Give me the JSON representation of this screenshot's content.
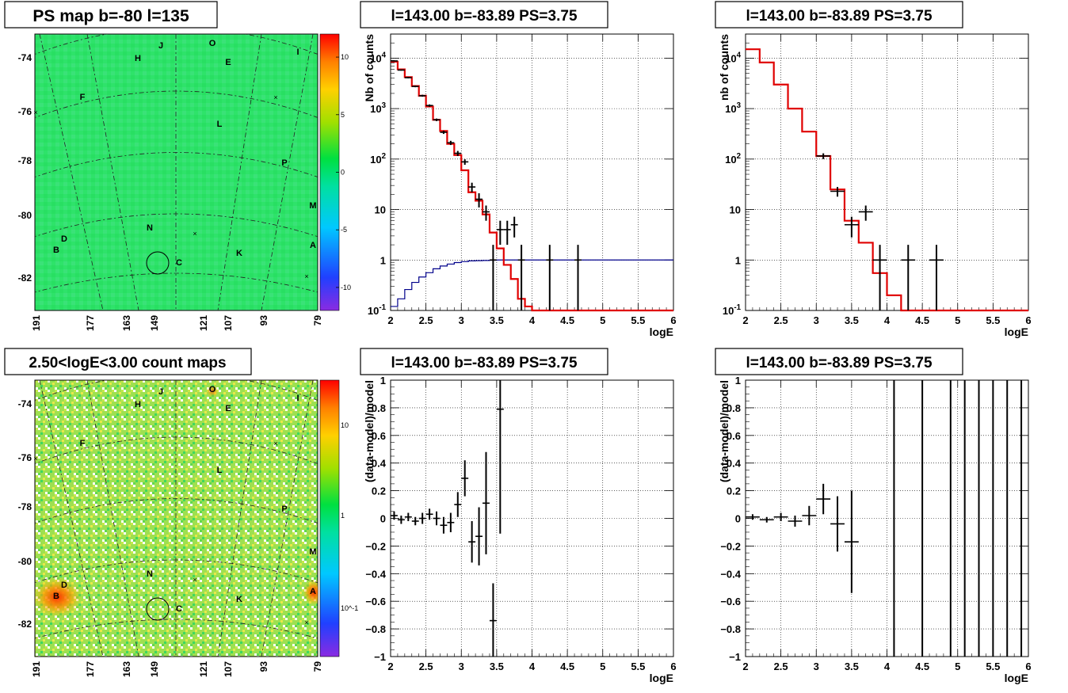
{
  "panels": {
    "map_top": {
      "title": "PS map b=-80 l=135",
      "colorbar_ticks": [
        10,
        5,
        0,
        -5,
        -10
      ],
      "colorbar_range": [
        -12,
        12
      ]
    },
    "map_bottom": {
      "title": "2.50<logE<3.00 count maps",
      "colorbar_labels": [
        "10",
        "1",
        "10^-1"
      ]
    },
    "map_axes": {
      "y_ticks": [
        "-74",
        "-76",
        "-78",
        "-80",
        "-82"
      ],
      "x_ticks": [
        "191",
        "177",
        "163",
        "149",
        "121",
        "107",
        "93",
        "79"
      ]
    },
    "map_sources": [
      "J",
      "O",
      "H",
      "E",
      "I",
      "F",
      "L",
      "P",
      "M",
      "D",
      "B",
      "N",
      "C",
      "K",
      "A"
    ],
    "spec_titles": [
      "l=143.00 b=-83.89 PS=3.75",
      "l=143.00 b=-83.89 PS=3.75",
      "l=143.00 b=-83.89 PS=3.75",
      "l=143.00 b=-83.89 PS=3.75"
    ]
  },
  "chart_data": [
    {
      "type": "line",
      "title": "l=143.00 b=-83.89 PS=3.75",
      "xlabel": "logE",
      "ylabel": "Nb of counts",
      "yscale": "log",
      "xlim": [
        2,
        6
      ],
      "ylim": [
        0.1,
        30000
      ],
      "x_ticks": [
        "2",
        "2.5",
        "3",
        "3.5",
        "4",
        "4.5",
        "5",
        "5.5",
        "6"
      ],
      "y_ticks": [
        {
          "v": 0.1,
          "t": "10^-1"
        },
        {
          "v": 1,
          "t": "1"
        },
        {
          "v": 10,
          "t": "10"
        },
        {
          "v": 100,
          "t": "10^2"
        },
        {
          "v": 1000,
          "t": "10^3"
        },
        {
          "v": 10000,
          "t": "10^4"
        }
      ],
      "grid": true,
      "step_model": {
        "color": "#e00000",
        "edges": [
          2.0,
          2.1,
          2.2,
          2.3,
          2.4,
          2.5,
          2.6,
          2.7,
          2.8,
          2.9,
          3.0,
          3.1,
          3.2,
          3.3,
          3.4,
          3.5,
          3.6,
          3.7,
          3.8,
          3.9,
          4.0,
          6.0
        ],
        "values": [
          8500,
          6000,
          4200,
          2800,
          1800,
          1100,
          600,
          360,
          200,
          120,
          60,
          22,
          15,
          8,
          3.5,
          1.7,
          0.8,
          0.42,
          0.17,
          0.12,
          0.1
        ]
      },
      "step_aux": {
        "color": "#00008b",
        "edges": [
          2.0,
          2.1,
          2.2,
          2.3,
          2.4,
          2.5,
          2.6,
          2.7,
          2.8,
          2.9,
          3.0,
          3.1,
          3.2,
          3.3,
          3.4,
          3.5,
          6.0
        ],
        "values": [
          0.12,
          0.17,
          0.26,
          0.36,
          0.46,
          0.56,
          0.67,
          0.76,
          0.83,
          0.89,
          0.93,
          0.96,
          0.97,
          0.98,
          0.99,
          1.0
        ]
      },
      "points": [
        {
          "x": 2.05,
          "y": 8800,
          "xe": 0.05,
          "lo": 8600,
          "hi": 9000
        },
        {
          "x": 2.15,
          "y": 5800,
          "xe": 0.05,
          "lo": 5650,
          "hi": 5950
        },
        {
          "x": 2.25,
          "y": 4100,
          "xe": 0.05,
          "lo": 3970,
          "hi": 4230
        },
        {
          "x": 2.35,
          "y": 2750,
          "xe": 0.05,
          "lo": 2650,
          "hi": 2850
        },
        {
          "x": 2.45,
          "y": 1800,
          "xe": 0.05,
          "lo": 1720,
          "hi": 1880
        },
        {
          "x": 2.55,
          "y": 1150,
          "xe": 0.05,
          "lo": 1090,
          "hi": 1210
        },
        {
          "x": 2.65,
          "y": 600,
          "xe": 0.05,
          "lo": 565,
          "hi": 635
        },
        {
          "x": 2.75,
          "y": 340,
          "xe": 0.05,
          "lo": 315,
          "hi": 365
        },
        {
          "x": 2.85,
          "y": 210,
          "xe": 0.05,
          "lo": 190,
          "hi": 230
        },
        {
          "x": 2.95,
          "y": 130,
          "xe": 0.05,
          "lo": 115,
          "hi": 145
        },
        {
          "x": 3.05,
          "y": 88,
          "xe": 0.05,
          "lo": 77,
          "hi": 99
        },
        {
          "x": 3.15,
          "y": 28,
          "xe": 0.05,
          "lo": 22,
          "hi": 34
        },
        {
          "x": 3.25,
          "y": 16,
          "xe": 0.05,
          "lo": 11,
          "hi": 21
        },
        {
          "x": 3.35,
          "y": 9,
          "xe": 0.05,
          "lo": 6,
          "hi": 12
        },
        {
          "x": 3.45,
          "y": 1,
          "xe": 0.05,
          "lo": 0.1,
          "hi": 2
        },
        {
          "x": 3.55,
          "y": 4,
          "xe": 0.05,
          "lo": 2,
          "hi": 6
        },
        {
          "x": 3.65,
          "y": 4,
          "xe": 0.05,
          "lo": 2,
          "hi": 6
        },
        {
          "x": 3.75,
          "y": 5,
          "xe": 0.05,
          "lo": 2.8,
          "hi": 7.2
        },
        {
          "x": 3.85,
          "y": 1,
          "xe": 0.05,
          "lo": 0.1,
          "hi": 2
        },
        {
          "x": 4.25,
          "y": 1,
          "xe": 0.05,
          "lo": 0.1,
          "hi": 2
        },
        {
          "x": 4.65,
          "y": 1,
          "xe": 0.05,
          "lo": 0.1,
          "hi": 2
        }
      ]
    },
    {
      "type": "line",
      "title": "l=143.00 b=-83.89 PS=3.75",
      "xlabel": "logE",
      "ylabel": "nb of counts",
      "yscale": "log",
      "xlim": [
        2,
        6
      ],
      "ylim": [
        0.1,
        30000
      ],
      "x_ticks": [
        "2",
        "2.5",
        "3",
        "3.5",
        "4",
        "4.5",
        "5",
        "5.5",
        "6"
      ],
      "y_ticks": [
        {
          "v": 0.1,
          "t": "10^-1"
        },
        {
          "v": 1,
          "t": "1"
        },
        {
          "v": 10,
          "t": "10"
        },
        {
          "v": 100,
          "t": "10^2"
        },
        {
          "v": 1000,
          "t": "10^3"
        },
        {
          "v": 10000,
          "t": "10^4"
        }
      ],
      "grid": true,
      "step_model": {
        "color": "#e00000",
        "edges": [
          2.0,
          2.2,
          2.4,
          2.6,
          2.8,
          3.0,
          3.2,
          3.4,
          3.6,
          3.8,
          4.0,
          4.2,
          6.0
        ],
        "values": [
          15000,
          8200,
          3000,
          1000,
          350,
          115,
          25,
          6,
          2.2,
          0.55,
          0.2,
          0.1
        ]
      },
      "points": [
        {
          "x": 3.1,
          "y": 115,
          "xe": 0.1,
          "lo": 100,
          "hi": 130
        },
        {
          "x": 3.3,
          "y": 23,
          "xe": 0.1,
          "lo": 18,
          "hi": 28
        },
        {
          "x": 3.5,
          "y": 5,
          "xe": 0.1,
          "lo": 2.8,
          "hi": 7.2
        },
        {
          "x": 3.7,
          "y": 9,
          "xe": 0.1,
          "lo": 6,
          "hi": 12
        },
        {
          "x": 3.9,
          "y": 1,
          "xe": 0.1,
          "lo": 0.1,
          "hi": 2
        },
        {
          "x": 4.3,
          "y": 1,
          "xe": 0.1,
          "lo": 0.1,
          "hi": 2
        },
        {
          "x": 4.7,
          "y": 1,
          "xe": 0.1,
          "lo": 0.1,
          "hi": 2
        }
      ]
    },
    {
      "type": "scatter",
      "title": "l=143.00 b=-83.89 PS=3.75",
      "xlabel": "logE",
      "ylabel": "(data-model)/model",
      "xlim": [
        2,
        6
      ],
      "ylim": [
        -1,
        1
      ],
      "x_ticks": [
        "2",
        "2.5",
        "3",
        "3.5",
        "4",
        "4.5",
        "5",
        "5.5",
        "6"
      ],
      "y_ticks": [
        "1",
        "0.8",
        "0.6",
        "0.4",
        "0.2",
        "0",
        "-0.2",
        "-0.4",
        "-0.6",
        "-0.8",
        "-1"
      ],
      "grid": true,
      "points": [
        {
          "x": 2.05,
          "y": 0.02,
          "xe": 0.05,
          "lo": -0.01,
          "hi": 0.05
        },
        {
          "x": 2.15,
          "y": -0.01,
          "xe": 0.05,
          "lo": -0.04,
          "hi": 0.02
        },
        {
          "x": 2.25,
          "y": 0.01,
          "xe": 0.05,
          "lo": -0.02,
          "hi": 0.04
        },
        {
          "x": 2.35,
          "y": -0.02,
          "xe": 0.05,
          "lo": -0.05,
          "hi": 0.01
        },
        {
          "x": 2.45,
          "y": 0.0,
          "xe": 0.05,
          "lo": -0.04,
          "hi": 0.04
        },
        {
          "x": 2.55,
          "y": 0.03,
          "xe": 0.05,
          "lo": -0.01,
          "hi": 0.07
        },
        {
          "x": 2.65,
          "y": 0.0,
          "xe": 0.05,
          "lo": -0.05,
          "hi": 0.05
        },
        {
          "x": 2.75,
          "y": -0.05,
          "xe": 0.05,
          "lo": -0.11,
          "hi": 0.01
        },
        {
          "x": 2.85,
          "y": -0.03,
          "xe": 0.05,
          "lo": -0.1,
          "hi": 0.04
        },
        {
          "x": 2.95,
          "y": 0.1,
          "xe": 0.05,
          "lo": 0.01,
          "hi": 0.19
        },
        {
          "x": 3.05,
          "y": 0.29,
          "xe": 0.05,
          "lo": 0.16,
          "hi": 0.42
        },
        {
          "x": 3.15,
          "y": -0.17,
          "xe": 0.05,
          "lo": -0.32,
          "hi": -0.02
        },
        {
          "x": 3.25,
          "y": -0.13,
          "xe": 0.05,
          "lo": -0.34,
          "hi": 0.08
        },
        {
          "x": 3.35,
          "y": 0.11,
          "xe": 0.05,
          "lo": -0.26,
          "hi": 0.48
        },
        {
          "x": 3.45,
          "y": -0.74,
          "xe": 0.05,
          "lo": -1.0,
          "hi": -0.47
        },
        {
          "x": 3.55,
          "y": 0.79,
          "xe": 0.05,
          "lo": -0.11,
          "hi": 1.0
        }
      ]
    },
    {
      "type": "scatter",
      "title": "l=143.00 b=-83.89 PS=3.75",
      "xlabel": "logE",
      "ylabel": "(data-model)/model",
      "xlim": [
        2,
        6
      ],
      "ylim": [
        -1,
        1
      ],
      "x_ticks": [
        "2",
        "2.5",
        "3",
        "3.5",
        "4",
        "4.5",
        "5",
        "5.5",
        "6"
      ],
      "y_ticks": [
        "1",
        "0.8",
        "0.6",
        "0.4",
        "0.2",
        "0",
        "-0.2",
        "-0.4",
        "-0.6",
        "-0.8",
        "-1"
      ],
      "grid": true,
      "points": [
        {
          "x": 2.1,
          "y": 0.01,
          "xe": 0.1,
          "lo": -0.01,
          "hi": 0.03
        },
        {
          "x": 2.3,
          "y": -0.01,
          "xe": 0.1,
          "lo": -0.03,
          "hi": 0.01
        },
        {
          "x": 2.5,
          "y": 0.01,
          "xe": 0.1,
          "lo": -0.02,
          "hi": 0.04
        },
        {
          "x": 2.7,
          "y": -0.02,
          "xe": 0.1,
          "lo": -0.06,
          "hi": 0.02
        },
        {
          "x": 2.9,
          "y": 0.02,
          "xe": 0.1,
          "lo": -0.05,
          "hi": 0.09
        },
        {
          "x": 3.1,
          "y": 0.14,
          "xe": 0.1,
          "lo": 0.03,
          "hi": 0.25
        },
        {
          "x": 3.3,
          "y": -0.04,
          "xe": 0.1,
          "lo": -0.24,
          "hi": 0.16
        },
        {
          "x": 3.5,
          "y": -0.17,
          "xe": 0.1,
          "lo": -0.54,
          "hi": 0.2
        },
        {
          "x": 4.1,
          "y": 0.0,
          "xe": 0.0,
          "lo": -1.0,
          "hi": 1.0
        },
        {
          "x": 4.5,
          "y": 0.0,
          "xe": 0.0,
          "lo": -1.0,
          "hi": 1.0
        },
        {
          "x": 4.9,
          "y": 0.0,
          "xe": 0.0,
          "lo": -1.0,
          "hi": 1.0
        },
        {
          "x": 5.1,
          "y": 0.0,
          "xe": 0.0,
          "lo": -1.0,
          "hi": 1.0
        },
        {
          "x": 5.3,
          "y": 0.0,
          "xe": 0.0,
          "lo": -1.0,
          "hi": 1.0
        },
        {
          "x": 5.5,
          "y": 0.0,
          "xe": 0.0,
          "lo": -1.0,
          "hi": 1.0
        },
        {
          "x": 5.7,
          "y": 0.0,
          "xe": 0.0,
          "lo": -1.0,
          "hi": 1.0
        },
        {
          "x": 5.9,
          "y": 0.0,
          "xe": 0.0,
          "lo": -1.0,
          "hi": 1.0
        }
      ]
    }
  ]
}
